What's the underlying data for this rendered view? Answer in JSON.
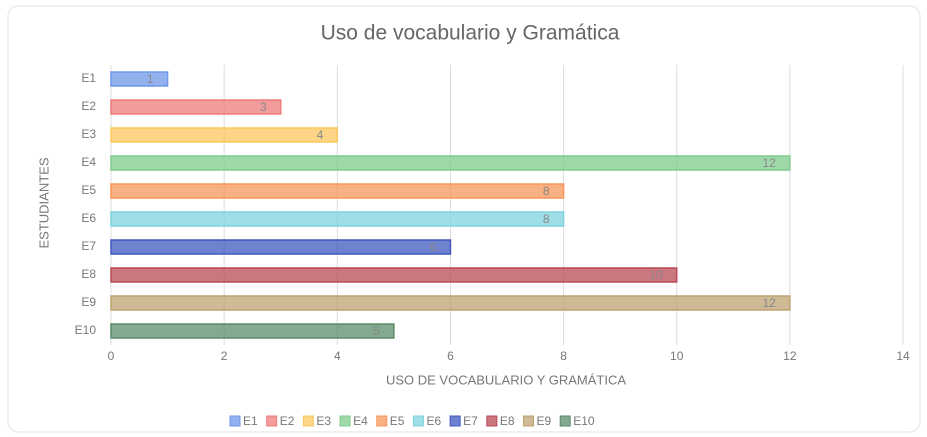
{
  "chart_data": {
    "type": "barh",
    "title": "Uso de vocabulario y Gramática",
    "x_label": "USO DE VOCABULARIO Y GRAMÁTICA",
    "y_label": "ESTUDIANTES",
    "categories": [
      "E1",
      "E2",
      "E3",
      "E4",
      "E5",
      "E6",
      "E7",
      "E8",
      "E9",
      "E10"
    ],
    "values": [
      1,
      3,
      4,
      12,
      8,
      8,
      6,
      10,
      12,
      5
    ],
    "colors": [
      "#6f97ea",
      "#ee7b7b",
      "#fbc85e",
      "#7fcc8e",
      "#f7955a",
      "#7fd3dd",
      "#3f58c0",
      "#b84a55",
      "#bea370",
      "#5a8c68"
    ],
    "xlim": [
      0,
      14
    ],
    "xticks": [
      0,
      2,
      4,
      6,
      8,
      10,
      12,
      14
    ],
    "grid": true,
    "legend": "bottom"
  }
}
